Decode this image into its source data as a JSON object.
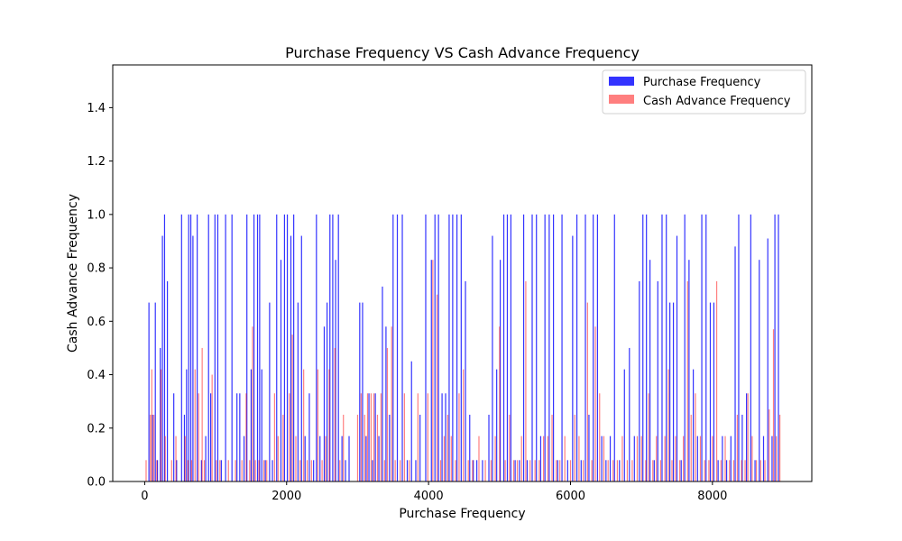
{
  "chart_data": {
    "type": "bar",
    "title": "Purchase Frequency VS Cash Advance Frequency",
    "xlabel": "Purchase Frequency",
    "ylabel": "Cash Advance Frequency",
    "xlim": [
      -450,
      9400
    ],
    "ylim": [
      0,
      1.56
    ],
    "xticks": [
      0,
      2000,
      4000,
      6000,
      8000
    ],
    "yticks": [
      0.0,
      0.2,
      0.4,
      0.6,
      0.8,
      1.0,
      1.2,
      1.4
    ],
    "xtick_labels": [
      "0",
      "2000",
      "4000",
      "6000",
      "8000"
    ],
    "ytick_labels": [
      "0.0",
      "0.2",
      "0.4",
      "0.6",
      "0.8",
      "1.0",
      "1.2",
      "1.4"
    ],
    "grid": false,
    "legend_position": "top-right",
    "series": [
      {
        "name": "Purchase Frequency",
        "color": "#0000ff",
        "opacity": 0.8,
        "points": [
          [
            60,
            0.67
          ],
          [
            110,
            0.25
          ],
          [
            150,
            0.67
          ],
          [
            180,
            0.08
          ],
          [
            220,
            0.5
          ],
          [
            250,
            0.92
          ],
          [
            280,
            1.0
          ],
          [
            320,
            0.75
          ],
          [
            410,
            0.33
          ],
          [
            450,
            0.08
          ],
          [
            520,
            1.0
          ],
          [
            560,
            0.25
          ],
          [
            590,
            0.42
          ],
          [
            620,
            1.0
          ],
          [
            650,
            1.0
          ],
          [
            680,
            0.92
          ],
          [
            740,
            1.0
          ],
          [
            800,
            0.08
          ],
          [
            860,
            0.17
          ],
          [
            900,
            1.0
          ],
          [
            930,
            0.33
          ],
          [
            990,
            1.0
          ],
          [
            1030,
            1.0
          ],
          [
            1080,
            0.08
          ],
          [
            1140,
            1.0
          ],
          [
            1230,
            1.0
          ],
          [
            1300,
            0.33
          ],
          [
            1340,
            0.33
          ],
          [
            1400,
            0.17
          ],
          [
            1440,
            1.0
          ],
          [
            1500,
            0.42
          ],
          [
            1540,
            1.0
          ],
          [
            1590,
            1.0
          ],
          [
            1620,
            1.0
          ],
          [
            1650,
            0.42
          ],
          [
            1700,
            0.08
          ],
          [
            1760,
            0.67
          ],
          [
            1800,
            0.08
          ],
          [
            1860,
            1.0
          ],
          [
            1920,
            0.83
          ],
          [
            1970,
            1.0
          ],
          [
            2010,
            1.0
          ],
          [
            2060,
            0.92
          ],
          [
            2100,
            1.0
          ],
          [
            2160,
            0.67
          ],
          [
            2210,
            0.92
          ],
          [
            2260,
            0.17
          ],
          [
            2320,
            0.33
          ],
          [
            2380,
            0.08
          ],
          [
            2420,
            1.0
          ],
          [
            2470,
            0.17
          ],
          [
            2530,
            0.58
          ],
          [
            2570,
            0.67
          ],
          [
            2610,
            1.0
          ],
          [
            2650,
            1.0
          ],
          [
            2690,
            0.83
          ],
          [
            2730,
            1.0
          ],
          [
            2780,
            0.17
          ],
          [
            2830,
            0.08
          ],
          [
            2880,
            0.17
          ],
          [
            3030,
            0.67
          ],
          [
            3070,
            0.67
          ],
          [
            3120,
            0.17
          ],
          [
            3160,
            0.33
          ],
          [
            3210,
            0.08
          ],
          [
            3250,
            0.33
          ],
          [
            3300,
            0.17
          ],
          [
            3350,
            0.73
          ],
          [
            3400,
            0.58
          ],
          [
            3450,
            0.25
          ],
          [
            3500,
            1.0
          ],
          [
            3560,
            1.0
          ],
          [
            3630,
            1.0
          ],
          [
            3700,
            0.08
          ],
          [
            3760,
            0.45
          ],
          [
            3820,
            0.08
          ],
          [
            3880,
            0.25
          ],
          [
            3960,
            1.0
          ],
          [
            4040,
            0.83
          ],
          [
            4090,
            1.0
          ],
          [
            4140,
            1.0
          ],
          [
            4190,
            0.33
          ],
          [
            4240,
            0.33
          ],
          [
            4290,
            1.0
          ],
          [
            4340,
            1.0
          ],
          [
            4400,
            1.0
          ],
          [
            4460,
            1.0
          ],
          [
            4520,
            0.75
          ],
          [
            4580,
            0.25
          ],
          [
            4630,
            0.08
          ],
          [
            4680,
            0.08
          ],
          [
            4760,
            0.08
          ],
          [
            4850,
            0.25
          ],
          [
            4900,
            0.92
          ],
          [
            4960,
            0.42
          ],
          [
            5010,
            0.83
          ],
          [
            5060,
            1.0
          ],
          [
            5110,
            1.0
          ],
          [
            5160,
            1.0
          ],
          [
            5220,
            0.08
          ],
          [
            5280,
            0.08
          ],
          [
            5340,
            1.0
          ],
          [
            5390,
            0.08
          ],
          [
            5460,
            1.0
          ],
          [
            5520,
            1.0
          ],
          [
            5580,
            0.17
          ],
          [
            5640,
            1.0
          ],
          [
            5700,
            1.0
          ],
          [
            5760,
            1.0
          ],
          [
            5820,
            0.08
          ],
          [
            5880,
            1.0
          ],
          [
            5960,
            0.08
          ],
          [
            6030,
            0.92
          ],
          [
            6090,
            1.0
          ],
          [
            6150,
            0.08
          ],
          [
            6210,
            1.0
          ],
          [
            6260,
            0.25
          ],
          [
            6320,
            1.0
          ],
          [
            6380,
            1.0
          ],
          [
            6440,
            0.17
          ],
          [
            6500,
            0.08
          ],
          [
            6560,
            0.17
          ],
          [
            6620,
            1.0
          ],
          [
            6690,
            0.08
          ],
          [
            6760,
            0.42
          ],
          [
            6830,
            0.5
          ],
          [
            6900,
            0.17
          ],
          [
            6970,
            0.75
          ],
          [
            7020,
            1.0
          ],
          [
            7070,
            1.0
          ],
          [
            7120,
            0.83
          ],
          [
            7180,
            0.08
          ],
          [
            7230,
            0.75
          ],
          [
            7290,
            1.0
          ],
          [
            7350,
            1.0
          ],
          [
            7400,
            0.67
          ],
          [
            7450,
            0.67
          ],
          [
            7500,
            0.92
          ],
          [
            7560,
            0.08
          ],
          [
            7610,
            1.0
          ],
          [
            7670,
            0.83
          ],
          [
            7730,
            0.42
          ],
          [
            7790,
            0.17
          ],
          [
            7850,
            1.0
          ],
          [
            7910,
            1.0
          ],
          [
            7970,
            0.67
          ],
          [
            8020,
            0.67
          ],
          [
            8080,
            0.08
          ],
          [
            8140,
            0.17
          ],
          [
            8200,
            0.08
          ],
          [
            8260,
            0.17
          ],
          [
            8320,
            0.88
          ],
          [
            8370,
            1.0
          ],
          [
            8420,
            0.25
          ],
          [
            8480,
            0.33
          ],
          [
            8540,
            1.0
          ],
          [
            8600,
            0.08
          ],
          [
            8660,
            0.83
          ],
          [
            8720,
            0.17
          ],
          [
            8780,
            0.91
          ],
          [
            8840,
            0.17
          ],
          [
            8880,
            1.0
          ],
          [
            8930,
            1.0
          ]
        ]
      },
      {
        "name": "Cash Advance Frequency",
        "color": "#ff0000",
        "opacity": 0.5,
        "points": [
          [
            20,
            0.08
          ],
          [
            80,
            0.25
          ],
          [
            100,
            0.42
          ],
          [
            130,
            0.25
          ],
          [
            170,
            0.08
          ],
          [
            230,
            0.42
          ],
          [
            290,
            0.17
          ],
          [
            380,
            0.08
          ],
          [
            440,
            0.17
          ],
          [
            570,
            0.17
          ],
          [
            610,
            0.08
          ],
          [
            660,
            0.08
          ],
          [
            710,
            0.42
          ],
          [
            760,
            0.33
          ],
          [
            810,
            0.5
          ],
          [
            840,
            0.08
          ],
          [
            950,
            0.4
          ],
          [
            1010,
            0.08
          ],
          [
            1060,
            0.08
          ],
          [
            1180,
            0.08
          ],
          [
            1280,
            0.08
          ],
          [
            1370,
            0.08
          ],
          [
            1430,
            0.33
          ],
          [
            1480,
            0.08
          ],
          [
            1520,
            0.58
          ],
          [
            1560,
            0.08
          ],
          [
            1610,
            0.08
          ],
          [
            1680,
            0.08
          ],
          [
            1720,
            0.08
          ],
          [
            1830,
            0.33
          ],
          [
            1880,
            0.17
          ],
          [
            1950,
            0.25
          ],
          [
            2040,
            0.33
          ],
          [
            2080,
            0.55
          ],
          [
            2130,
            0.17
          ],
          [
            2190,
            0.08
          ],
          [
            2240,
            0.42
          ],
          [
            2290,
            0.08
          ],
          [
            2350,
            0.08
          ],
          [
            2440,
            0.42
          ],
          [
            2500,
            0.08
          ],
          [
            2550,
            0.17
          ],
          [
            2600,
            0.42
          ],
          [
            2680,
            0.5
          ],
          [
            2750,
            0.08
          ],
          [
            2800,
            0.25
          ],
          [
            3000,
            0.25
          ],
          [
            3050,
            0.33
          ],
          [
            3100,
            0.25
          ],
          [
            3140,
            0.33
          ],
          [
            3190,
            0.33
          ],
          [
            3230,
            0.33
          ],
          [
            3280,
            0.25
          ],
          [
            3330,
            0.33
          ],
          [
            3380,
            0.08
          ],
          [
            3420,
            0.5
          ],
          [
            3480,
            0.58
          ],
          [
            3530,
            0.08
          ],
          [
            3600,
            0.08
          ],
          [
            3660,
            0.33
          ],
          [
            3730,
            0.08
          ],
          [
            3850,
            0.33
          ],
          [
            3990,
            0.33
          ],
          [
            4060,
            0.83
          ],
          [
            4120,
            0.7
          ],
          [
            4170,
            0.08
          ],
          [
            4220,
            0.17
          ],
          [
            4270,
            0.25
          ],
          [
            4320,
            0.17
          ],
          [
            4380,
            0.08
          ],
          [
            4430,
            0.33
          ],
          [
            4490,
            0.42
          ],
          [
            4560,
            0.08
          ],
          [
            4620,
            0.08
          ],
          [
            4710,
            0.17
          ],
          [
            4800,
            0.08
          ],
          [
            4880,
            0.08
          ],
          [
            4940,
            0.17
          ],
          [
            5000,
            0.58
          ],
          [
            5080,
            0.08
          ],
          [
            5140,
            0.25
          ],
          [
            5200,
            0.08
          ],
          [
            5250,
            0.08
          ],
          [
            5310,
            0.17
          ],
          [
            5370,
            0.75
          ],
          [
            5430,
            0.08
          ],
          [
            5500,
            0.08
          ],
          [
            5560,
            0.08
          ],
          [
            5620,
            0.17
          ],
          [
            5680,
            0.17
          ],
          [
            5740,
            0.25
          ],
          [
            5800,
            0.08
          ],
          [
            5850,
            0.08
          ],
          [
            5920,
            0.17
          ],
          [
            6000,
            0.08
          ],
          [
            6060,
            0.25
          ],
          [
            6120,
            0.17
          ],
          [
            6180,
            0.08
          ],
          [
            6240,
            0.67
          ],
          [
            6300,
            0.08
          ],
          [
            6350,
            0.58
          ],
          [
            6410,
            0.33
          ],
          [
            6470,
            0.17
          ],
          [
            6530,
            0.08
          ],
          [
            6600,
            0.08
          ],
          [
            6660,
            0.08
          ],
          [
            6730,
            0.17
          ],
          [
            6800,
            0.08
          ],
          [
            6870,
            0.08
          ],
          [
            6940,
            0.17
          ],
          [
            7000,
            0.17
          ],
          [
            7060,
            0.08
          ],
          [
            7100,
            0.33
          ],
          [
            7160,
            0.08
          ],
          [
            7210,
            0.17
          ],
          [
            7270,
            0.08
          ],
          [
            7330,
            0.17
          ],
          [
            7380,
            0.42
          ],
          [
            7430,
            0.08
          ],
          [
            7480,
            0.17
          ],
          [
            7540,
            0.08
          ],
          [
            7590,
            0.17
          ],
          [
            7650,
            0.75
          ],
          [
            7700,
            0.25
          ],
          [
            7760,
            0.33
          ],
          [
            7830,
            0.17
          ],
          [
            7890,
            0.08
          ],
          [
            7950,
            0.08
          ],
          [
            8000,
            0.17
          ],
          [
            8060,
            0.75
          ],
          [
            8120,
            0.08
          ],
          [
            8180,
            0.17
          ],
          [
            8240,
            0.08
          ],
          [
            8300,
            0.08
          ],
          [
            8350,
            0.25
          ],
          [
            8410,
            0.08
          ],
          [
            8460,
            0.08
          ],
          [
            8500,
            0.33
          ],
          [
            8560,
            0.17
          ],
          [
            8620,
            0.08
          ],
          [
            8680,
            0.08
          ],
          [
            8740,
            0.08
          ],
          [
            8800,
            0.27
          ],
          [
            8860,
            0.57
          ],
          [
            8900,
            0.17
          ],
          [
            8950,
            0.25
          ]
        ]
      }
    ]
  }
}
